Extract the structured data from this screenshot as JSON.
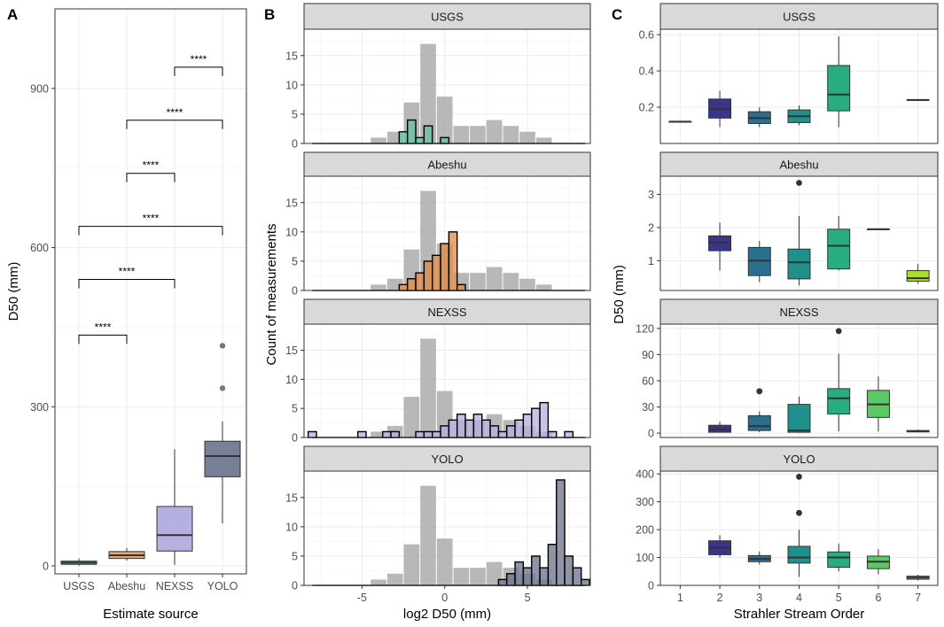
{
  "colors": {
    "grid": "#ebebeb",
    "panel_border": "#333333",
    "strip_fill": "#d9d9d9",
    "gray_hist": "#a6a6a6",
    "usgs": "#66c2a5",
    "abeshu": "#e08b46",
    "nexss": "#b4b0e0",
    "yolo": "#6b7089",
    "viridis": [
      "#440154",
      "#39358b",
      "#2a6f8e",
      "#21908d",
      "#27ad81",
      "#5cc863",
      "#aadc32"
    ]
  },
  "panel_labels": [
    "A",
    "B",
    "C"
  ],
  "chart_data": [
    {
      "id": "A",
      "type": "box",
      "title": "",
      "xlabel": "Estimate source",
      "ylabel": "D50 (mm)",
      "ylim": [
        -15,
        1050
      ],
      "yticks": [
        0,
        300,
        600,
        900
      ],
      "categories": [
        "USGS",
        "Abeshu",
        "NEXSS",
        "YOLO"
      ],
      "fills": [
        "#6fb8a0",
        "#e8a46d",
        "#b4b0e0",
        "#7a7f98"
      ],
      "boxes": [
        {
          "whisker_low": 0.5,
          "q1": 3,
          "median": 6,
          "q3": 9,
          "whisker_high": 14,
          "outliers": []
        },
        {
          "whisker_low": 10,
          "q1": 14,
          "median": 20,
          "q3": 27,
          "whisker_high": 34,
          "outliers": []
        },
        {
          "whisker_low": 2,
          "q1": 28,
          "median": 58,
          "q3": 112,
          "whisker_high": 220,
          "outliers": []
        },
        {
          "whisker_low": 80,
          "q1": 168,
          "median": 207,
          "q3": 235,
          "whisker_high": 272,
          "outliers": [
            335,
            415
          ]
        }
      ],
      "brackets": [
        {
          "from": "USGS",
          "to": "Abeshu",
          "y": 435,
          "label": "****"
        },
        {
          "from": "USGS",
          "to": "NEXSS",
          "y": 540,
          "label": "****"
        },
        {
          "from": "USGS",
          "to": "YOLO",
          "y": 640,
          "label": "****"
        },
        {
          "from": "Abeshu",
          "to": "NEXSS",
          "y": 740,
          "label": "****"
        },
        {
          "from": "Abeshu",
          "to": "YOLO",
          "y": 840,
          "label": "****"
        },
        {
          "from": "NEXSS",
          "to": "YOLO",
          "y": 940,
          "label": "****"
        }
      ]
    },
    {
      "id": "B",
      "type": "bar",
      "title": "",
      "xlabel": "log2 D50 (mm)",
      "ylabel": "Count of measurements",
      "xlim": [
        -8.5,
        8.8
      ],
      "ylim": [
        0,
        19.5
      ],
      "xticks": [
        -5,
        0,
        5
      ],
      "yticks": [
        0,
        5,
        10,
        15
      ],
      "bin_width": 1,
      "background_series": {
        "name": "all estimates",
        "x": [
          -4,
          -3,
          -2,
          -1,
          0,
          1,
          2,
          3,
          4,
          5,
          6
        ],
        "values": [
          1,
          2,
          7,
          17,
          8,
          3,
          3,
          4,
          3,
          2,
          1
        ]
      },
      "facets": [
        {
          "name": "USGS",
          "x": [
            -2.5,
            -2,
            -1.5,
            -1,
            0
          ],
          "values": [
            2,
            4,
            1,
            3,
            1
          ]
        },
        {
          "name": "Abeshu",
          "x": [
            -2.5,
            -2,
            -1.5,
            -1,
            -0.5,
            0,
            0.5,
            1
          ],
          "values": [
            1,
            2,
            3,
            5,
            6,
            8,
            10,
            1
          ]
        },
        {
          "name": "NEXSS",
          "x": [
            -8,
            -5,
            -3.5,
            -3,
            -1.5,
            -1,
            -0.5,
            0,
            0.5,
            1,
            1.5,
            2,
            2.5,
            3,
            3.5,
            4,
            4.5,
            5,
            5.5,
            6,
            6.5,
            7.5
          ],
          "values": [
            1,
            1,
            1,
            1,
            1,
            1,
            1,
            2,
            3,
            4,
            3,
            4,
            3,
            2,
            1,
            2,
            3,
            4,
            5,
            6,
            1,
            1
          ]
        },
        {
          "name": "YOLO",
          "x": [
            3.5,
            4,
            4.5,
            5,
            5.5,
            6,
            6.5,
            7,
            7.5,
            8,
            8.5
          ],
          "values": [
            1,
            2,
            4,
            3,
            5,
            3,
            7,
            18,
            5,
            3,
            1
          ]
        }
      ]
    },
    {
      "id": "C",
      "type": "box",
      "title": "",
      "xlabel": "Strahler Stream Order",
      "ylabel": "D50 (mm)",
      "categories": [
        "1",
        "2",
        "3",
        "4",
        "5",
        "6",
        "7"
      ],
      "facets": [
        {
          "name": "USGS",
          "ylim": [
            0,
            0.63
          ],
          "yticks": [
            0.2,
            0.4,
            0.6
          ],
          "ytick_labels": [
            "0.2",
            "0.4",
            "0.6"
          ],
          "boxes": [
            {
              "order": 1,
              "whisker_low": 0.12,
              "q1": 0.12,
              "median": 0.12,
              "q3": 0.12,
              "whisker_high": 0.12,
              "outliers": []
            },
            {
              "order": 2,
              "whisker_low": 0.09,
              "q1": 0.14,
              "median": 0.19,
              "q3": 0.245,
              "whisker_high": 0.29,
              "outliers": []
            },
            {
              "order": 3,
              "whisker_low": 0.09,
              "q1": 0.11,
              "median": 0.14,
              "q3": 0.175,
              "whisker_high": 0.2,
              "outliers": []
            },
            {
              "order": 4,
              "whisker_low": 0.1,
              "q1": 0.115,
              "median": 0.15,
              "q3": 0.185,
              "whisker_high": 0.21,
              "outliers": []
            },
            {
              "order": 5,
              "whisker_low": 0.09,
              "q1": 0.18,
              "median": 0.27,
              "q3": 0.43,
              "whisker_high": 0.59,
              "outliers": []
            },
            {
              "order": 7,
              "whisker_low": 0.24,
              "q1": 0.24,
              "median": 0.24,
              "q3": 0.24,
              "whisker_high": 0.24,
              "outliers": []
            }
          ]
        },
        {
          "name": "Abeshu",
          "ylim": [
            0.1,
            3.55
          ],
          "yticks": [
            1,
            2,
            3
          ],
          "ytick_labels": [
            "1",
            "2",
            "3"
          ],
          "boxes": [
            {
              "order": 2,
              "whisker_low": 0.7,
              "q1": 1.3,
              "median": 1.55,
              "q3": 1.75,
              "whisker_high": 2.15,
              "outliers": []
            },
            {
              "order": 3,
              "whisker_low": 0.35,
              "q1": 0.55,
              "median": 1.0,
              "q3": 1.4,
              "whisker_high": 1.6,
              "outliers": []
            },
            {
              "order": 4,
              "whisker_low": 0.25,
              "q1": 0.45,
              "median": 0.95,
              "q3": 1.35,
              "whisker_high": 2.35,
              "outliers": [
                3.35
              ]
            },
            {
              "order": 5,
              "whisker_low": 0.7,
              "q1": 0.75,
              "median": 1.45,
              "q3": 1.95,
              "whisker_high": 2.35,
              "outliers": []
            },
            {
              "order": 6,
              "whisker_low": 1.95,
              "q1": 1.95,
              "median": 1.95,
              "q3": 1.95,
              "whisker_high": 1.95,
              "outliers": []
            },
            {
              "order": 7,
              "whisker_low": 0.3,
              "q1": 0.38,
              "median": 0.47,
              "q3": 0.7,
              "whisker_high": 0.9,
              "outliers": []
            }
          ]
        },
        {
          "name": "NEXSS",
          "ylim": [
            -5,
            125
          ],
          "yticks": [
            0,
            30,
            60,
            90,
            120
          ],
          "ytick_labels": [
            "0",
            "30",
            "60",
            "90",
            "120"
          ],
          "boxes": [
            {
              "order": 2,
              "whisker_low": 0.5,
              "q1": 1,
              "median": 4,
              "q3": 9,
              "whisker_high": 13,
              "outliers": []
            },
            {
              "order": 3,
              "whisker_low": 1,
              "q1": 3,
              "median": 8,
              "q3": 20,
              "whisker_high": 25,
              "outliers": [
                48
              ]
            },
            {
              "order": 4,
              "whisker_low": 0.5,
              "q1": 1,
              "median": 3,
              "q3": 33,
              "whisker_high": 42,
              "outliers": []
            },
            {
              "order": 5,
              "whisker_low": 2,
              "q1": 22,
              "median": 40,
              "q3": 51,
              "whisker_high": 91,
              "outliers": [
                117
              ]
            },
            {
              "order": 6,
              "whisker_low": 2,
              "q1": 18,
              "median": 33,
              "q3": 49,
              "whisker_high": 65,
              "outliers": []
            },
            {
              "order": 7,
              "whisker_low": 1,
              "q1": 1.5,
              "median": 2,
              "q3": 3,
              "whisker_high": 4,
              "outliers": []
            }
          ]
        },
        {
          "name": "YOLO",
          "ylim": [
            0,
            410
          ],
          "yticks": [
            0,
            100,
            200,
            300,
            400
          ],
          "ytick_labels": [
            "0",
            "100",
            "200",
            "300",
            "400"
          ],
          "boxes": [
            {
              "order": 2,
              "whisker_low": 100,
              "q1": 110,
              "median": 135,
              "q3": 160,
              "whisker_high": 180,
              "outliers": []
            },
            {
              "order": 3,
              "whisker_low": 75,
              "q1": 85,
              "median": 95,
              "q3": 107,
              "whisker_high": 122,
              "outliers": []
            },
            {
              "order": 4,
              "whisker_low": 30,
              "q1": 80,
              "median": 100,
              "q3": 140,
              "whisker_high": 200,
              "outliers": [
                260,
                390
              ]
            },
            {
              "order": 5,
              "whisker_low": 50,
              "q1": 65,
              "median": 100,
              "q3": 120,
              "whisker_high": 150,
              "outliers": []
            },
            {
              "order": 6,
              "whisker_low": 40,
              "q1": 60,
              "median": 85,
              "q3": 105,
              "whisker_high": 130,
              "outliers": []
            },
            {
              "order": 7,
              "whisker_low": 18,
              "q1": 22,
              "median": 28,
              "q3": 33,
              "whisker_high": 38,
              "outliers": []
            }
          ]
        }
      ]
    }
  ]
}
